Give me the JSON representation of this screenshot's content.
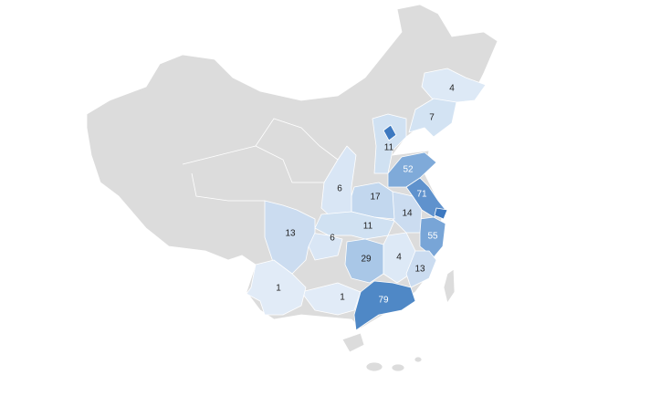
{
  "chart_data": {
    "type": "choropleth",
    "colors": {
      "base": "#dcdcdc",
      "light": "#dde9f6",
      "low": "#c9dcf0",
      "mid": "#a9c7e7",
      "midhigh": "#7faad9",
      "high": "#5b90cc",
      "top": "#3f7cc2"
    },
    "regions": [
      {
        "id": "jilin",
        "value": "4",
        "color": "#dde9f6",
        "label_color": "#222"
      },
      {
        "id": "liaoning",
        "value": "7",
        "color": "#d3e3f3",
        "label_color": "#222"
      },
      {
        "id": "hebei",
        "value": "11",
        "color": "#d0e1f2",
        "label_color": "#222"
      },
      {
        "id": "beijing",
        "value": null,
        "color": "#3d79c0"
      },
      {
        "id": "shandong",
        "value": "52",
        "color": "#7faad9",
        "label_color": "#fff"
      },
      {
        "id": "jiangsu",
        "value": "71",
        "color": "#5f92cd",
        "label_color": "#fff"
      },
      {
        "id": "shanghai",
        "value": null,
        "color": "#3d79c0"
      },
      {
        "id": "zhejiang",
        "value": "55",
        "color": "#78a5d7",
        "label_color": "#fff"
      },
      {
        "id": "anhui",
        "value": "14",
        "color": "#cbdcf0",
        "label_color": "#222"
      },
      {
        "id": "henan",
        "value": "17",
        "color": "#c2d7ee",
        "label_color": "#222"
      },
      {
        "id": "shaanxi",
        "value": "6",
        "color": "#d9e6f5",
        "label_color": "#222"
      },
      {
        "id": "hubei",
        "value": "11",
        "color": "#d0e1f2",
        "label_color": "#222"
      },
      {
        "id": "chongqing",
        "value": "6",
        "color": "#d9e6f5",
        "label_color": "#222"
      },
      {
        "id": "sichuan",
        "value": "13",
        "color": "#cbdcf0",
        "label_color": "#222"
      },
      {
        "id": "hunan",
        "value": "29",
        "color": "#a9c7e7",
        "label_color": "#222"
      },
      {
        "id": "jiangxi",
        "value": "4",
        "color": "#dde9f6",
        "label_color": "#222"
      },
      {
        "id": "fujian",
        "value": "13",
        "color": "#cbdcf0",
        "label_color": "#222"
      },
      {
        "id": "guangdong",
        "value": "79",
        "color": "#4f88c6",
        "label_color": "#fff"
      },
      {
        "id": "guangxi",
        "value": "1",
        "color": "#e1ebf7",
        "label_color": "#222"
      },
      {
        "id": "yunnan",
        "value": "1",
        "color": "#e1ebf7",
        "label_color": "#222"
      }
    ]
  }
}
